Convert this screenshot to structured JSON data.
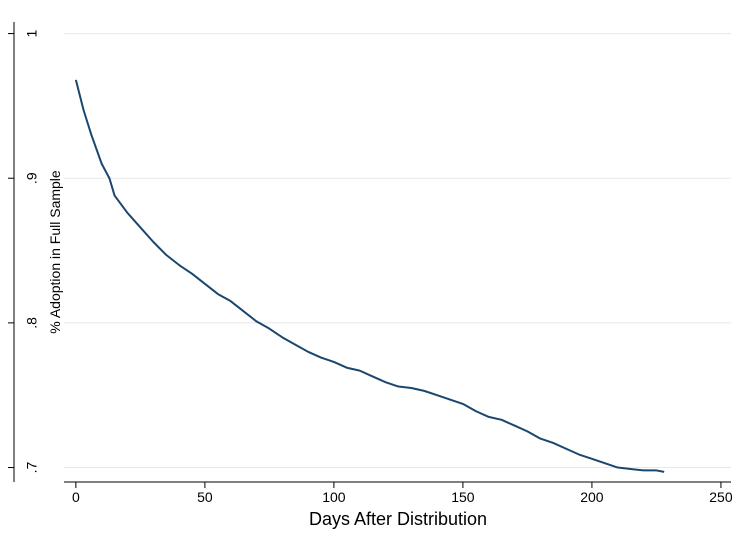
{
  "chart_data": {
    "type": "line",
    "x_label": "Days After Distribution",
    "y_label": "% Adoption in Full Sample",
    "x": [
      0,
      3,
      6,
      10,
      13,
      15,
      20,
      25,
      30,
      35,
      40,
      45,
      50,
      55,
      60,
      65,
      70,
      75,
      80,
      85,
      90,
      95,
      100,
      105,
      110,
      115,
      120,
      125,
      130,
      135,
      140,
      145,
      150,
      155,
      160,
      165,
      170,
      175,
      180,
      185,
      190,
      195,
      200,
      205,
      210,
      215,
      220,
      225,
      228
    ],
    "series": [
      {
        "color": "#1a476f",
        "values": [
          0.968,
          0.947,
          0.93,
          0.91,
          0.9,
          0.888,
          0.876,
          0.866,
          0.856,
          0.847,
          0.84,
          0.834,
          0.827,
          0.82,
          0.815,
          0.808,
          0.801,
          0.796,
          0.79,
          0.785,
          0.78,
          0.776,
          0.773,
          0.769,
          0.767,
          0.763,
          0.759,
          0.756,
          0.755,
          0.753,
          0.75,
          0.747,
          0.744,
          0.739,
          0.735,
          0.733,
          0.729,
          0.725,
          0.72,
          0.717,
          0.713,
          0.709,
          0.706,
          0.703,
          0.7,
          0.699,
          0.698,
          0.698,
          0.697
        ]
      }
    ],
    "xlim": [
      -4.6,
      253.9
    ],
    "xticks": [
      0,
      50,
      100,
      150,
      200,
      250
    ],
    "ylim": [
      0.69,
      1.008
    ],
    "yticks": [
      {
        "value": 0.7,
        "label": ".7"
      },
      {
        "value": 0.8,
        "label": ".8"
      },
      {
        "value": 0.9,
        "label": ".9"
      },
      1
    ],
    "grid": true
  }
}
